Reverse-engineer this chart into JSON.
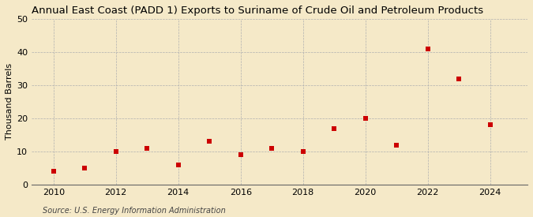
{
  "title": "Annual East Coast (PADD 1) Exports to Suriname of Crude Oil and Petroleum Products",
  "ylabel": "Thousand Barrels",
  "source": "Source: U.S. Energy Information Administration",
  "background_color": "#f5e9c8",
  "plot_bg_color": "#f5e9c8",
  "data_color": "#cc0000",
  "years": [
    2010,
    2011,
    2012,
    2013,
    2014,
    2015,
    2016,
    2017,
    2018,
    2019,
    2020,
    2021,
    2022,
    2023,
    2024
  ],
  "values": [
    4,
    5,
    10,
    11,
    6,
    13,
    9,
    11,
    10,
    17,
    20,
    12,
    41,
    32,
    18
  ],
  "xlim": [
    2009.3,
    2025.2
  ],
  "ylim": [
    0,
    50
  ],
  "yticks": [
    0,
    10,
    20,
    30,
    40,
    50
  ],
  "xticks": [
    2010,
    2012,
    2014,
    2016,
    2018,
    2020,
    2022,
    2024
  ],
  "title_fontsize": 9.5,
  "ylabel_fontsize": 8,
  "tick_fontsize": 8,
  "source_fontsize": 7,
  "marker_size": 25
}
